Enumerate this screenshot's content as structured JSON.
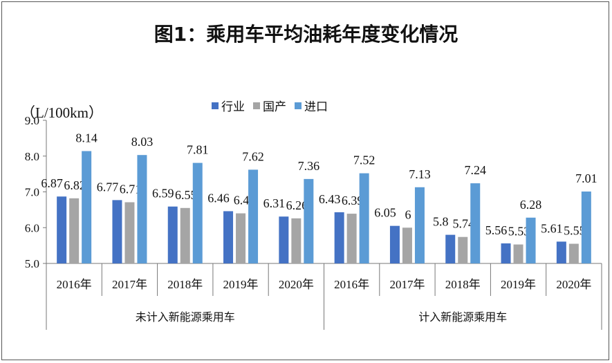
{
  "chart_data": {
    "type": "bar",
    "title": "图1：乘用车平均油耗年度变化情况",
    "ylabel": "（L/100km）",
    "ylim": [
      5.0,
      9.0
    ],
    "yticks": [
      "5.0",
      "6.0",
      "7.0",
      "8.0",
      "9.0"
    ],
    "legend_position": "top-center",
    "groups": [
      {
        "label": "未计入新能源乘用车",
        "categories": [
          "2016年",
          "2017年",
          "2018年",
          "2019年",
          "2020年"
        ]
      },
      {
        "label": "计入新能源乘用车",
        "categories": [
          "2016年",
          "2017年",
          "2018年",
          "2019年",
          "2020年"
        ]
      }
    ],
    "series": [
      {
        "name": "行业",
        "color": "#4472C4",
        "values": [
          6.87,
          6.77,
          6.59,
          6.46,
          6.31,
          6.43,
          6.05,
          5.8,
          5.56,
          5.61
        ],
        "labels": [
          "6.87",
          "6.77",
          "6.59",
          "6.46",
          "6.31",
          "6.43",
          "6.05",
          "5.8",
          "5.56",
          "5.61"
        ]
      },
      {
        "name": "国产",
        "color": "#A5A5A5",
        "values": [
          6.82,
          6.71,
          6.55,
          6.4,
          6.26,
          6.39,
          6,
          5.74,
          5.53,
          5.55
        ],
        "labels": [
          "6.82",
          "6.71",
          "6.55",
          "6.4",
          "6.26",
          "6.39",
          "6",
          "5.74",
          "5.53",
          "5.55"
        ]
      },
      {
        "name": "进口",
        "color": "#5B9BD5",
        "values": [
          8.14,
          8.03,
          7.81,
          7.62,
          7.36,
          7.52,
          7.13,
          7.24,
          6.28,
          7.01
        ],
        "labels": [
          "8.14",
          "8.03",
          "7.81",
          "7.62",
          "7.36",
          "7.52",
          "7.13",
          "7.24",
          "6.28",
          "7.01"
        ]
      }
    ]
  }
}
